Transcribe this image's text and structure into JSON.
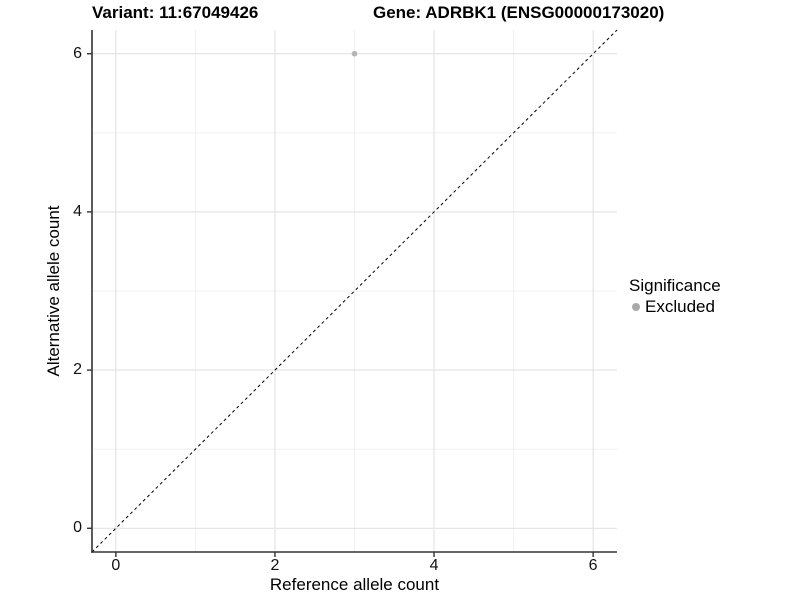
{
  "chart_data": {
    "type": "scatter",
    "titles": [
      "Variant: 11:67049426",
      "Gene: ADRBK1 (ENSG00000173020)"
    ],
    "xlabel": "Reference allele count",
    "ylabel": "Alternative allele count",
    "xlim": [
      -0.3,
      6.3
    ],
    "ylim": [
      -0.3,
      6.3
    ],
    "x_major_ticks": [
      0,
      2,
      4,
      6
    ],
    "y_major_ticks": [
      0,
      2,
      4,
      6
    ],
    "x_minor_gridlines": [
      1,
      3,
      5
    ],
    "y_minor_gridlines": [
      1,
      3,
      5
    ],
    "grid": "major and minor gridlines on white background",
    "series": [
      {
        "name": "Excluded",
        "color": "#b5b5b5",
        "points": [
          {
            "x": 3,
            "y": 6
          }
        ]
      }
    ],
    "identity_line": {
      "slope": 1,
      "intercept": 0,
      "style": "dashed",
      "color": "#000000"
    },
    "legend": {
      "title": "Significance",
      "position": "right",
      "items": [
        {
          "label": "Excluded",
          "color": "#a9a9a9"
        }
      ]
    },
    "colors": {
      "background": "#ffffff",
      "grid_major": "#e2e2e2",
      "grid_minor": "#f0f0f0",
      "axis_line": "#333333",
      "tick_mark": "#333333",
      "text": "#000000",
      "point": "#b5b5b5"
    }
  }
}
